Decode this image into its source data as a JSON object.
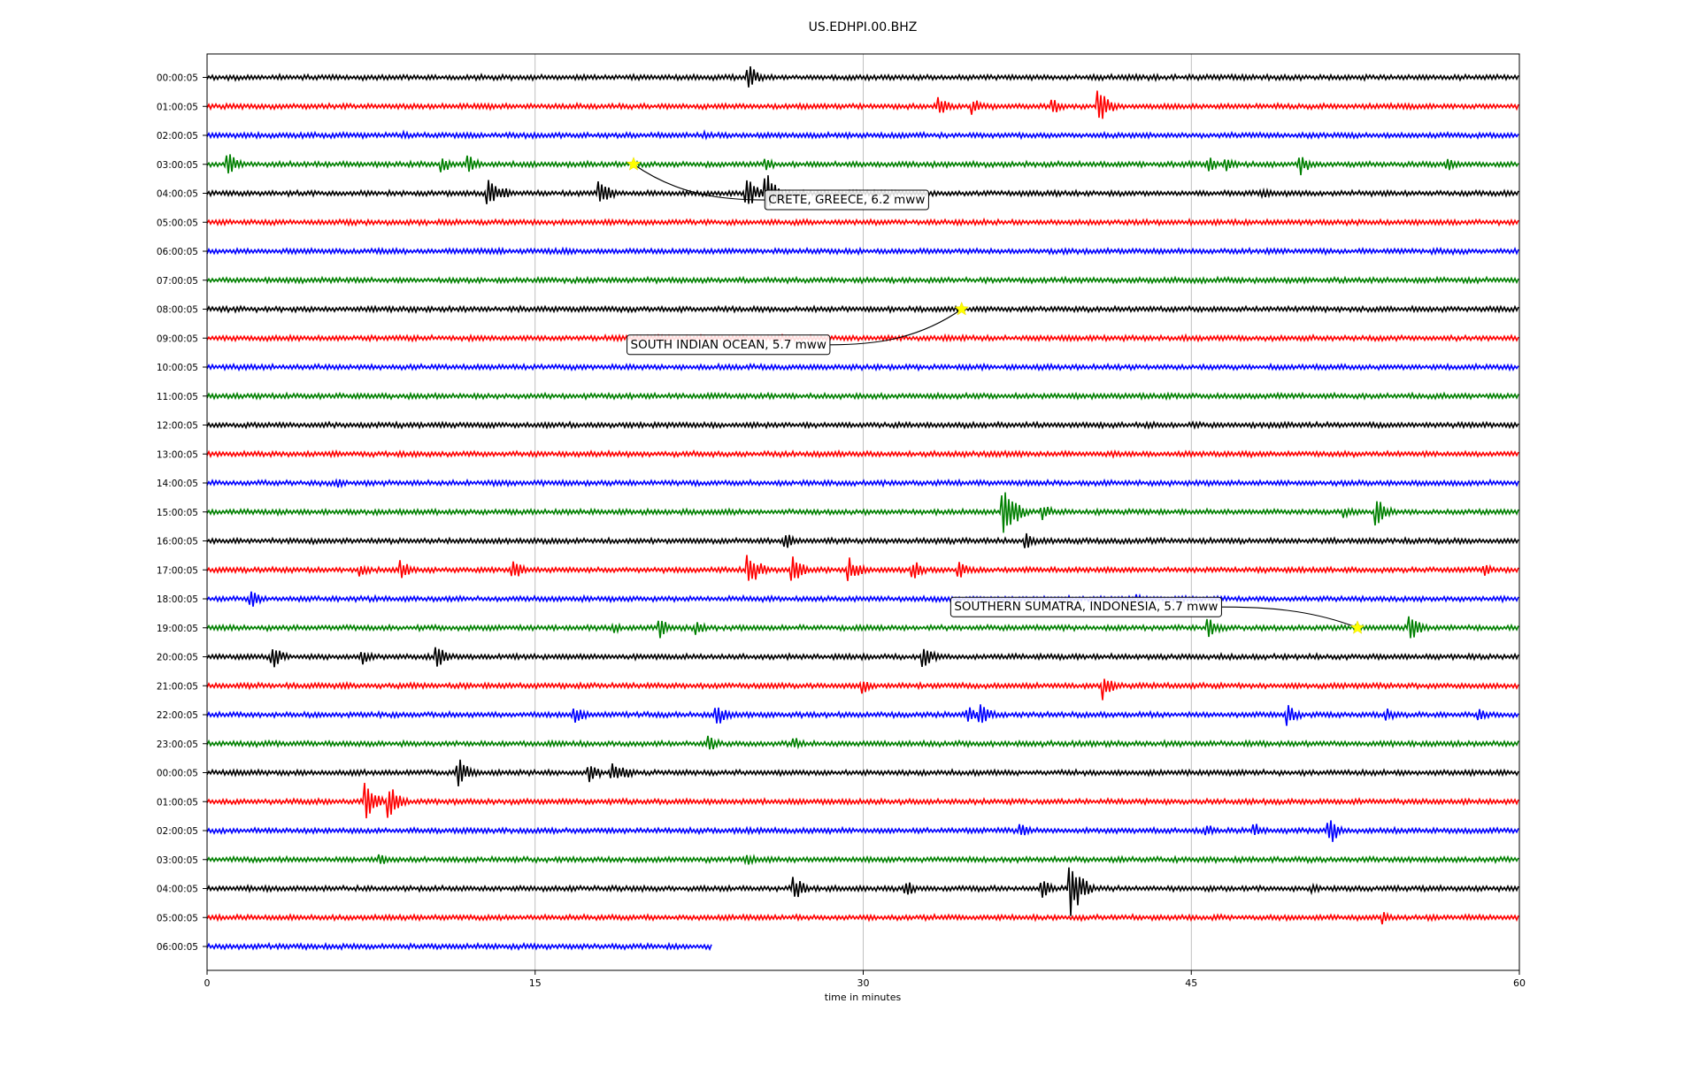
{
  "chart_data": {
    "type": "line",
    "title": "US.EDHPI.00.BHZ",
    "xlabel": "time in minutes",
    "ylabel": "",
    "xlim": [
      0,
      60
    ],
    "xticks": [
      0,
      15,
      30,
      45,
      60
    ],
    "grid": "vertical",
    "row_labels": [
      "00:00:05",
      "01:00:05",
      "02:00:05",
      "03:00:05",
      "04:00:05",
      "05:00:05",
      "06:00:05",
      "07:00:05",
      "08:00:05",
      "09:00:05",
      "10:00:05",
      "11:00:05",
      "12:00:05",
      "13:00:05",
      "14:00:05",
      "15:00:05",
      "16:00:05",
      "17:00:05",
      "18:00:05",
      "19:00:05",
      "20:00:05",
      "21:00:05",
      "22:00:05",
      "23:00:05",
      "00:00:05",
      "01:00:05",
      "02:00:05",
      "03:00:05",
      "04:00:05",
      "05:00:05",
      "06:00:05"
    ],
    "colors": [
      "#000000",
      "#ff0000",
      "#0000ff",
      "#008000"
    ],
    "last_row_end_minute": 23.1,
    "bursts": [
      {
        "row": 0,
        "minute": 24.8,
        "amp": 14
      },
      {
        "row": 0,
        "minute": 29.4,
        "amp": 4
      },
      {
        "row": 1,
        "minute": 33.5,
        "amp": 11
      },
      {
        "row": 1,
        "minute": 35.0,
        "amp": 10
      },
      {
        "row": 1,
        "minute": 38.7,
        "amp": 9
      },
      {
        "row": 1,
        "minute": 40.8,
        "amp": 19
      },
      {
        "row": 2,
        "minute": 9.0,
        "amp": 5
      },
      {
        "row": 2,
        "minute": 22.7,
        "amp": 5
      },
      {
        "row": 3,
        "minute": 1.0,
        "amp": 13
      },
      {
        "row": 3,
        "minute": 10.8,
        "amp": 10
      },
      {
        "row": 3,
        "minute": 12.0,
        "amp": 10
      },
      {
        "row": 3,
        "minute": 25.6,
        "amp": 7
      },
      {
        "row": 3,
        "minute": 45.8,
        "amp": 9
      },
      {
        "row": 3,
        "minute": 46.6,
        "amp": 9
      },
      {
        "row": 3,
        "minute": 50.0,
        "amp": 13
      },
      {
        "row": 3,
        "minute": 56.7,
        "amp": 10
      },
      {
        "row": 4,
        "minute": 12.9,
        "amp": 15
      },
      {
        "row": 4,
        "minute": 13.6,
        "amp": 8
      },
      {
        "row": 4,
        "minute": 18.0,
        "amp": 18
      },
      {
        "row": 4,
        "minute": 24.7,
        "amp": 19
      },
      {
        "row": 4,
        "minute": 25.6,
        "amp": 26
      },
      {
        "row": 4,
        "minute": 48.3,
        "amp": 6
      },
      {
        "row": 14,
        "minute": 6.0,
        "amp": 6
      },
      {
        "row": 15,
        "minute": 36.4,
        "amp": 40
      },
      {
        "row": 15,
        "minute": 37.0,
        "amp": 12
      },
      {
        "row": 15,
        "minute": 38.2,
        "amp": 10
      },
      {
        "row": 15,
        "minute": 52.0,
        "amp": 7
      },
      {
        "row": 15,
        "minute": 53.5,
        "amp": 16
      },
      {
        "row": 16,
        "minute": 26.5,
        "amp": 10
      },
      {
        "row": 16,
        "minute": 37.5,
        "amp": 9
      },
      {
        "row": 17,
        "minute": 7.0,
        "amp": 9
      },
      {
        "row": 17,
        "minute": 8.9,
        "amp": 11
      },
      {
        "row": 17,
        "minute": 14.0,
        "amp": 14
      },
      {
        "row": 17,
        "minute": 24.8,
        "amp": 22
      },
      {
        "row": 17,
        "minute": 26.8,
        "amp": 16
      },
      {
        "row": 17,
        "minute": 29.4,
        "amp": 14
      },
      {
        "row": 17,
        "minute": 32.3,
        "amp": 12
      },
      {
        "row": 17,
        "minute": 34.4,
        "amp": 12
      },
      {
        "row": 17,
        "minute": 58.4,
        "amp": 7
      },
      {
        "row": 18,
        "minute": 2.0,
        "amp": 11
      },
      {
        "row": 18,
        "minute": 42.5,
        "amp": 5
      },
      {
        "row": 19,
        "minute": 18.6,
        "amp": 6
      },
      {
        "row": 19,
        "minute": 20.7,
        "amp": 12
      },
      {
        "row": 19,
        "minute": 22.4,
        "amp": 8
      },
      {
        "row": 19,
        "minute": 45.8,
        "amp": 12
      },
      {
        "row": 19,
        "minute": 55.0,
        "amp": 18
      },
      {
        "row": 20,
        "minute": 3.0,
        "amp": 14
      },
      {
        "row": 20,
        "minute": 7.1,
        "amp": 9
      },
      {
        "row": 20,
        "minute": 10.5,
        "amp": 13
      },
      {
        "row": 20,
        "minute": 32.8,
        "amp": 12
      },
      {
        "row": 21,
        "minute": 30.0,
        "amp": 9
      },
      {
        "row": 21,
        "minute": 41.0,
        "amp": 17
      },
      {
        "row": 22,
        "minute": 16.8,
        "amp": 11
      },
      {
        "row": 22,
        "minute": 23.3,
        "amp": 15
      },
      {
        "row": 22,
        "minute": 34.8,
        "amp": 11
      },
      {
        "row": 22,
        "minute": 35.4,
        "amp": 14
      },
      {
        "row": 22,
        "minute": 49.4,
        "amp": 14
      },
      {
        "row": 22,
        "minute": 54.0,
        "amp": 7
      },
      {
        "row": 22,
        "minute": 58.2,
        "amp": 7
      },
      {
        "row": 23,
        "minute": 23.0,
        "amp": 9
      },
      {
        "row": 23,
        "minute": 26.9,
        "amp": 7
      },
      {
        "row": 24,
        "minute": 11.5,
        "amp": 17
      },
      {
        "row": 24,
        "minute": 17.5,
        "amp": 12
      },
      {
        "row": 24,
        "minute": 18.5,
        "amp": 12
      },
      {
        "row": 24,
        "minute": 19.1,
        "amp": 8
      },
      {
        "row": 25,
        "minute": 7.3,
        "amp": 22
      },
      {
        "row": 25,
        "minute": 8.3,
        "amp": 22
      },
      {
        "row": 26,
        "minute": 37.2,
        "amp": 9
      },
      {
        "row": 26,
        "minute": 45.7,
        "amp": 9
      },
      {
        "row": 26,
        "minute": 47.9,
        "amp": 9
      },
      {
        "row": 26,
        "minute": 51.3,
        "amp": 18
      },
      {
        "row": 27,
        "minute": 7.9,
        "amp": 10
      },
      {
        "row": 27,
        "minute": 24.7,
        "amp": 7
      },
      {
        "row": 28,
        "minute": 26.9,
        "amp": 14
      },
      {
        "row": 28,
        "minute": 32.0,
        "amp": 9
      },
      {
        "row": 28,
        "minute": 38.2,
        "amp": 12
      },
      {
        "row": 28,
        "minute": 39.5,
        "amp": 38
      },
      {
        "row": 28,
        "minute": 50.6,
        "amp": 5
      },
      {
        "row": 29,
        "minute": 53.8,
        "amp": 8
      }
    ],
    "events": [
      {
        "label": "CRETE, GREECE, 6.2 mww",
        "row": 3,
        "minute": 19.5,
        "label_row": 4.2,
        "label_minute": 25.5
      },
      {
        "label": "SOUTH INDIAN OCEAN, 5.7 mww",
        "row": 8,
        "minute": 34.5,
        "label_row": 9.2,
        "label_minute": 19.2
      },
      {
        "label": "SOUTHERN SUMATRA, INDONESIA, 5.7 mww",
        "row": 19,
        "minute": 52.6,
        "label_row": 18.25,
        "label_minute": 34.0
      }
    ]
  }
}
